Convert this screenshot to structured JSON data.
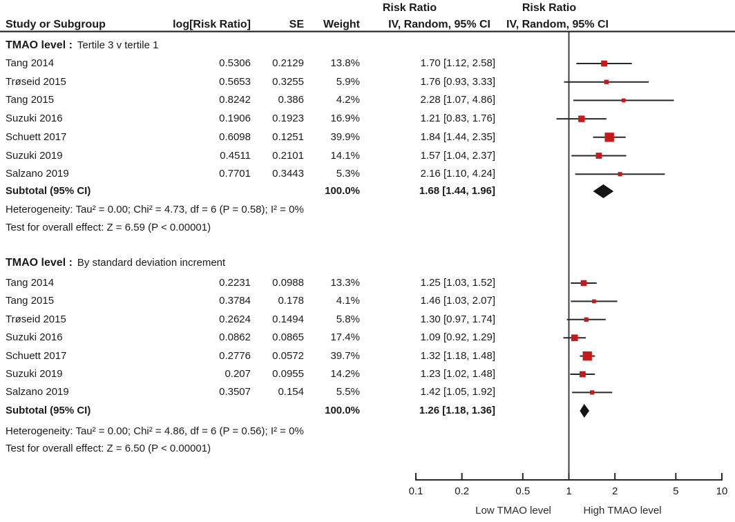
{
  "chart_data": {
    "type": "forest",
    "headers": {
      "risk_ratio_left": "Risk Ratio",
      "risk_ratio_right": "Risk Ratio",
      "study": "Study or Subgroup",
      "log_risk_ratio": "log[Risk Ratio]",
      "se": "SE",
      "weight": "Weight",
      "iv_random_left": "IV, Random, 95% CI",
      "iv_random_right": "IV, Random, 95% CI"
    },
    "colors": {
      "marker_red": "#c41a1a",
      "diamond_black": "#141414",
      "line": "#262626",
      "null_line": "#404040",
      "text": "#1a1a1a"
    },
    "axis": {
      "scale": "log",
      "min": 0.1,
      "max": 10,
      "ticks": [
        0.1,
        0.2,
        0.5,
        1,
        2,
        5,
        10
      ],
      "tick_labels": [
        "0.1",
        "0.2",
        "0.5",
        "1",
        "2",
        "5",
        "10"
      ],
      "left_label": "Low TMAO level",
      "right_label": "High TMAO level"
    },
    "subgroups": [
      {
        "label_bold": "TMAO level :",
        "label_rest": "Tertile 3 v tertile 1",
        "studies": [
          {
            "name": "Tang 2014",
            "log_rr": "0.5306",
            "se": "0.2129",
            "weight": "13.8%",
            "weight_pct": 13.8,
            "rr": 1.7,
            "ci_low": 1.12,
            "ci_high": 2.58,
            "rr_ci_text": "1.70 [1.12, 2.58]"
          },
          {
            "name": "Trøseid 2015",
            "log_rr": "0.5653",
            "se": "0.3255",
            "weight": "5.9%",
            "weight_pct": 5.9,
            "rr": 1.76,
            "ci_low": 0.93,
            "ci_high": 3.33,
            "rr_ci_text": "1.76 [0.93, 3.33]"
          },
          {
            "name": "Tang 2015",
            "log_rr": "0.8242",
            "se": "0.386",
            "weight": "4.2%",
            "weight_pct": 4.2,
            "rr": 2.28,
            "ci_low": 1.07,
            "ci_high": 4.86,
            "rr_ci_text": "2.28 [1.07, 4.86]"
          },
          {
            "name": "Suzuki 2016",
            "log_rr": "0.1906",
            "se": "0.1923",
            "weight": "16.9%",
            "weight_pct": 16.9,
            "rr": 1.21,
            "ci_low": 0.83,
            "ci_high": 1.76,
            "rr_ci_text": "1.21 [0.83, 1.76]"
          },
          {
            "name": "Schuett 2017",
            "log_rr": "0.6098",
            "se": "0.1251",
            "weight": "39.9%",
            "weight_pct": 39.9,
            "rr": 1.84,
            "ci_low": 1.44,
            "ci_high": 2.35,
            "rr_ci_text": "1.84 [1.44, 2.35]"
          },
          {
            "name": "Suzuki 2019",
            "log_rr": "0.4511",
            "se": "0.2101",
            "weight": "14.1%",
            "weight_pct": 14.1,
            "rr": 1.57,
            "ci_low": 1.04,
            "ci_high": 2.37,
            "rr_ci_text": "1.57 [1.04, 2.37]"
          },
          {
            "name": "Salzano 2019",
            "log_rr": "0.7701",
            "se": "0.3443",
            "weight": "5.3%",
            "weight_pct": 5.3,
            "rr": 2.16,
            "ci_low": 1.1,
            "ci_high": 4.24,
            "rr_ci_text": "2.16 [1.10, 4.24]"
          }
        ],
        "subtotal": {
          "label": "Subtotal (95% CI)",
          "weight": "100.0%",
          "rr": 1.68,
          "ci_low": 1.44,
          "ci_high": 1.96,
          "rr_ci_text": "1.68 [1.44, 1.96]"
        },
        "heterogeneity": "Heterogeneity: Tau² = 0.00; Chi² = 4.73, df = 6 (P = 0.58); I² = 0%",
        "overall_effect": "Test for overall effect: Z = 6.59 (P < 0.00001)"
      },
      {
        "label_bold": "TMAO level :",
        "label_rest": "By standard deviation increment",
        "studies": [
          {
            "name": "Tang 2014",
            "log_rr": "0.2231",
            "se": "0.0988",
            "weight": "13.3%",
            "weight_pct": 13.3,
            "rr": 1.25,
            "ci_low": 1.03,
            "ci_high": 1.52,
            "rr_ci_text": "1.25 [1.03, 1.52]"
          },
          {
            "name": "Tang 2015",
            "log_rr": "0.3784",
            "se": "0.178",
            "weight": "4.1%",
            "weight_pct": 4.1,
            "rr": 1.46,
            "ci_low": 1.03,
            "ci_high": 2.07,
            "rr_ci_text": "1.46 [1.03, 2.07]"
          },
          {
            "name": "Trøseid 2015",
            "log_rr": "0.2624",
            "se": "0.1494",
            "weight": "5.8%",
            "weight_pct": 5.8,
            "rr": 1.3,
            "ci_low": 0.97,
            "ci_high": 1.74,
            "rr_ci_text": "1.30 [0.97, 1.74]"
          },
          {
            "name": "Suzuki 2016",
            "log_rr": "0.0862",
            "se": "0.0865",
            "weight": "17.4%",
            "weight_pct": 17.4,
            "rr": 1.09,
            "ci_low": 0.92,
            "ci_high": 1.29,
            "rr_ci_text": "1.09 [0.92, 1.29]"
          },
          {
            "name": "Schuett 2017",
            "log_rr": "0.2776",
            "se": "0.0572",
            "weight": "39.7%",
            "weight_pct": 39.7,
            "rr": 1.32,
            "ci_low": 1.18,
            "ci_high": 1.48,
            "rr_ci_text": "1.32 [1.18, 1.48]"
          },
          {
            "name": "Suzuki 2019",
            "log_rr": "0.207",
            "se": "0.0955",
            "weight": "14.2%",
            "weight_pct": 14.2,
            "rr": 1.23,
            "ci_low": 1.02,
            "ci_high": 1.48,
            "rr_ci_text": "1.23 [1.02, 1.48]"
          },
          {
            "name": "Salzano 2019",
            "log_rr": "0.3507",
            "se": "0.154",
            "weight": "5.5%",
            "weight_pct": 5.5,
            "rr": 1.42,
            "ci_low": 1.05,
            "ci_high": 1.92,
            "rr_ci_text": "1.42 [1.05, 1.92]"
          }
        ],
        "subtotal": {
          "label": "Subtotal (95% CI)",
          "weight": "100.0%",
          "rr": 1.26,
          "ci_low": 1.18,
          "ci_high": 1.36,
          "rr_ci_text": "1.26 [1.18, 1.36]"
        },
        "heterogeneity": "Heterogeneity: Tau² = 0.00; Chi² = 4.86, df = 6 (P = 0.56); I² = 0%",
        "overall_effect": "Test for overall effect: Z = 6.50 (P < 0.00001)"
      }
    ]
  }
}
